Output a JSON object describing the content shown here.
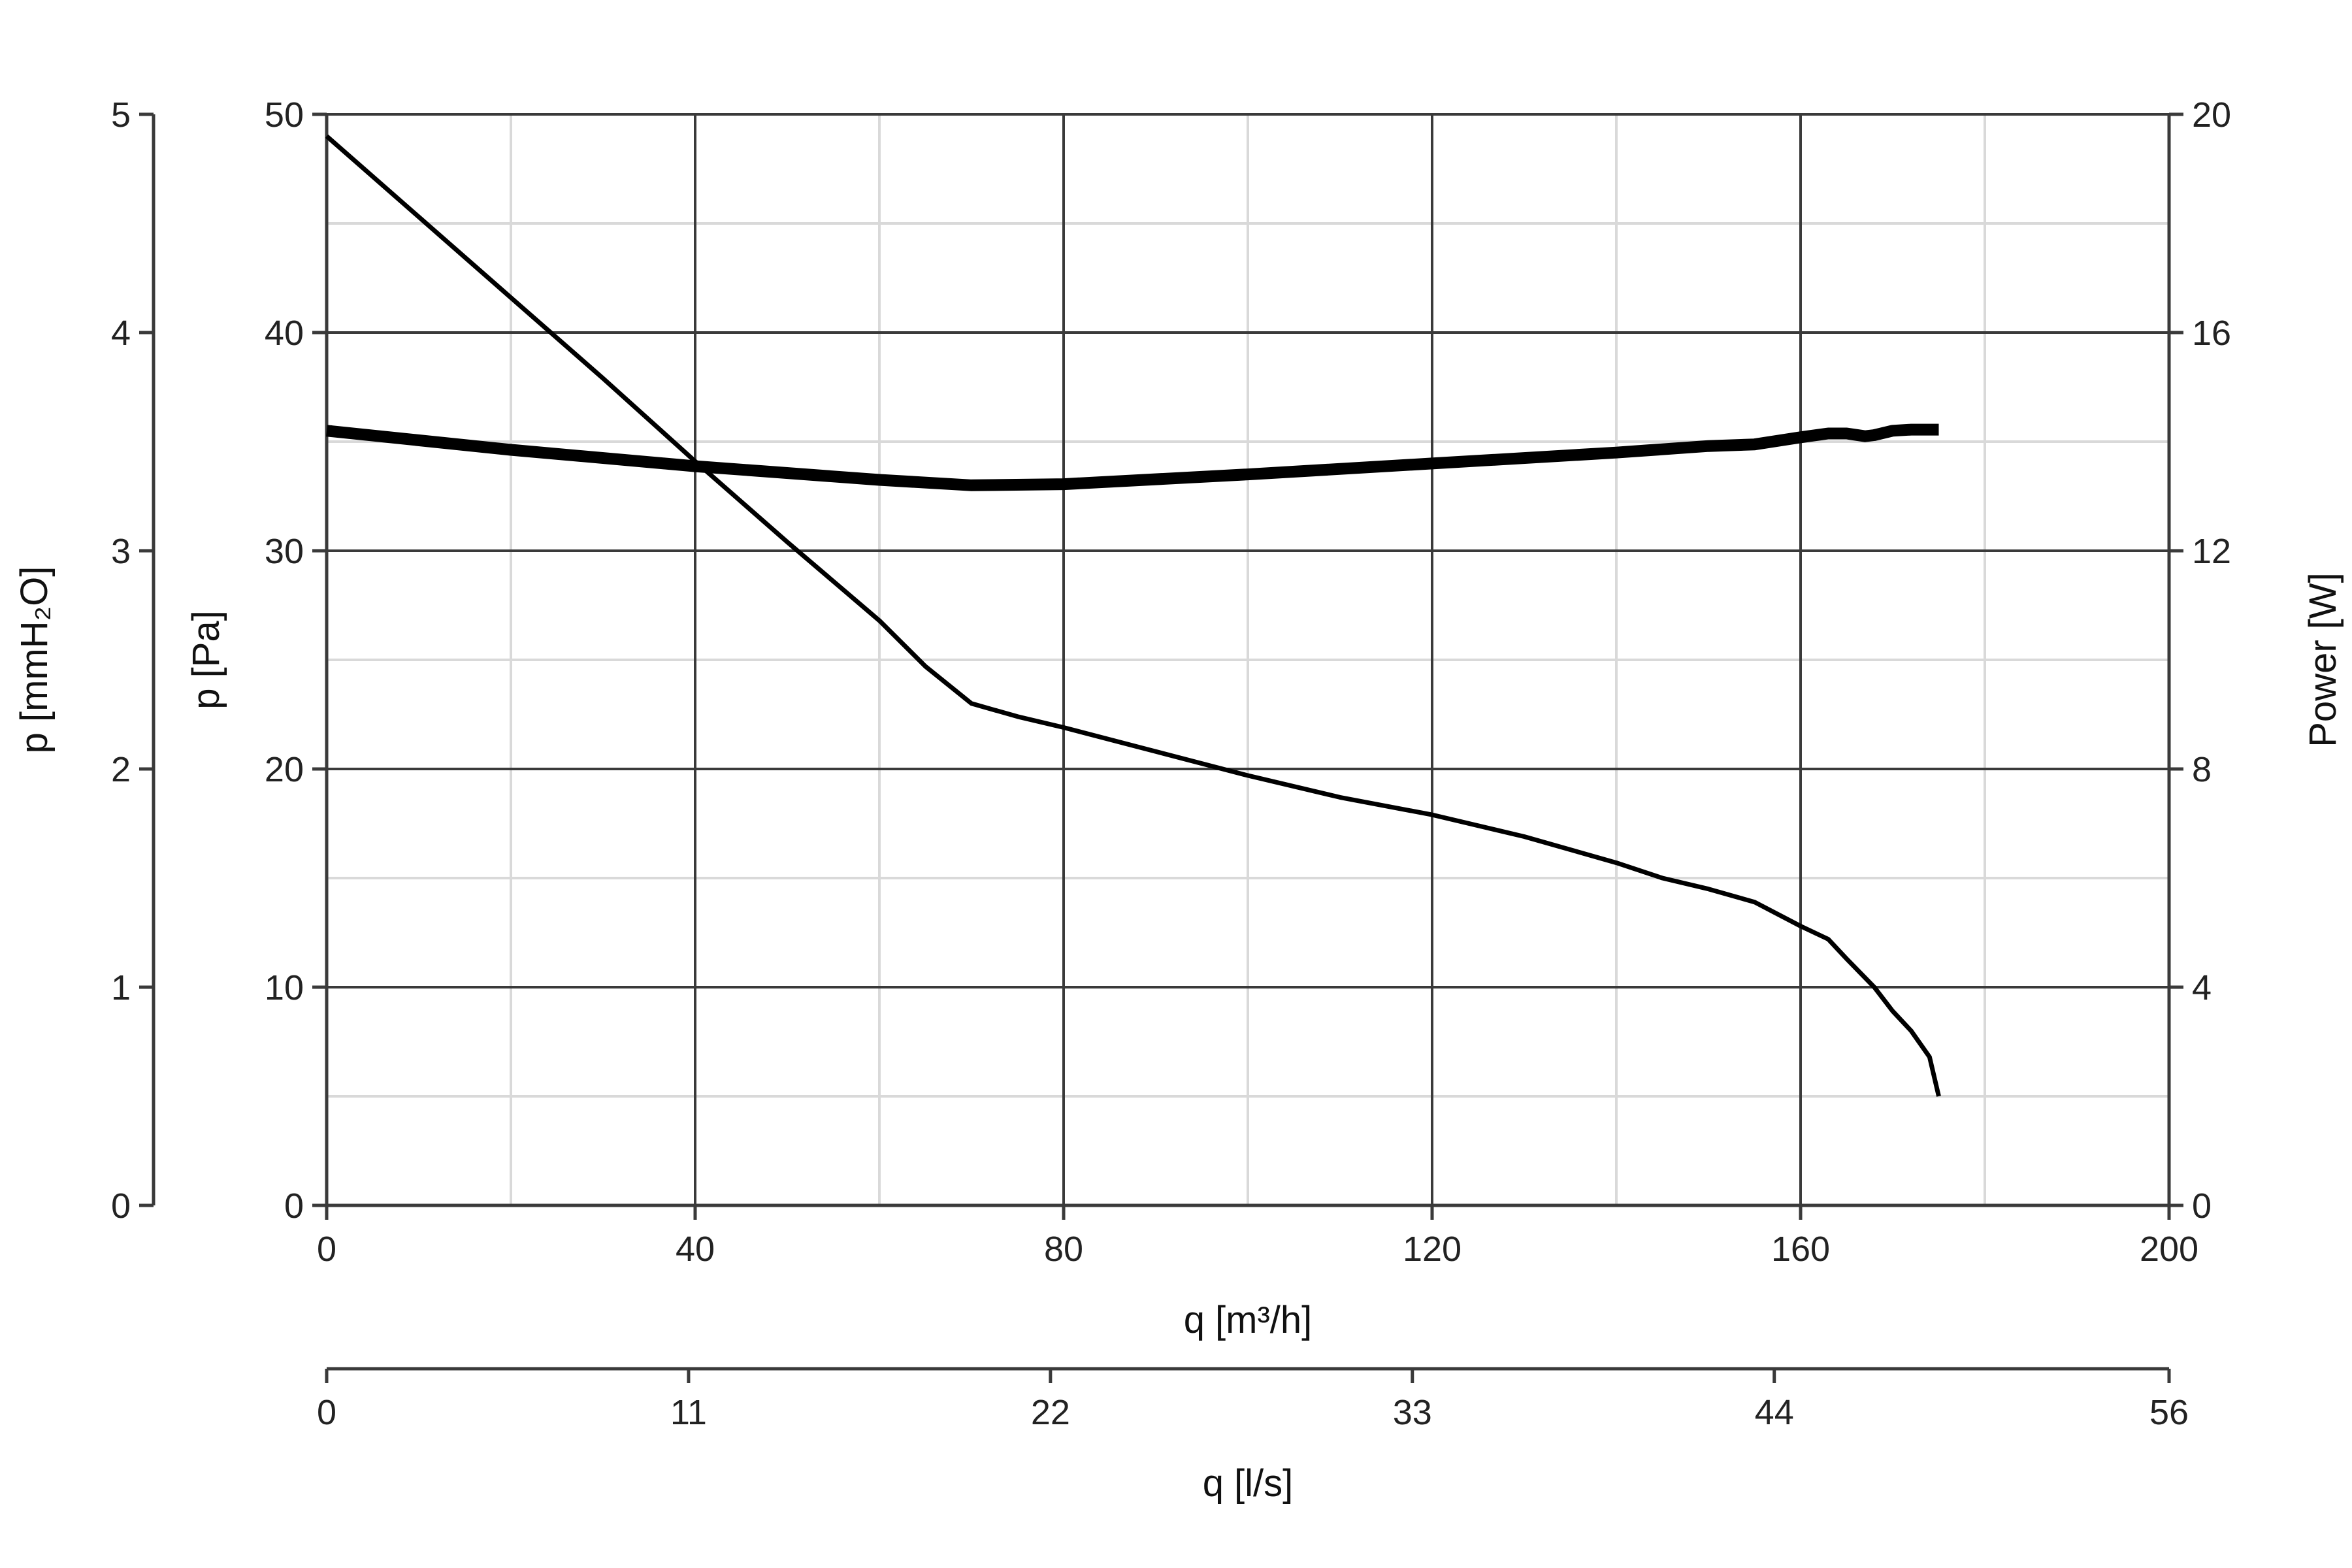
{
  "chart_data": {
    "type": "line",
    "x_axis": {
      "label": "q [m³/h]",
      "range": [
        0,
        200
      ],
      "ticks": [
        0,
        40,
        80,
        120,
        160,
        200
      ],
      "minor_ticks": [
        20,
        60,
        100,
        140,
        180
      ]
    },
    "x_axis_secondary": {
      "label": "q [l/s]",
      "range": [
        0,
        56
      ],
      "ticks": [
        0,
        11,
        22,
        33,
        44,
        56
      ]
    },
    "y_axis": {
      "label": "p [Pa]",
      "range": [
        0,
        50
      ],
      "ticks": [
        0,
        10,
        20,
        30,
        40,
        50
      ],
      "minor_ticks": [
        5,
        15,
        25,
        35,
        45
      ]
    },
    "y_axis_outer": {
      "label": "p [mmH₂O]",
      "range": [
        0,
        5
      ],
      "ticks": [
        0,
        1,
        2,
        3,
        4,
        5
      ]
    },
    "y_axis_right": {
      "label": "Power [W]",
      "range": [
        0,
        20
      ],
      "ticks": [
        0,
        4,
        8,
        12,
        16,
        20
      ]
    },
    "grid": true,
    "colors": {
      "curve": "#000000",
      "grid_major": "#3a3a3a",
      "grid_minor": "#d9d9d9",
      "axis": "#3a3a3a"
    },
    "series": [
      {
        "axis": "left",
        "x": [
          0,
          10,
          20,
          30,
          40,
          50,
          60,
          65,
          70,
          75,
          80,
          90,
          100,
          110,
          120,
          130,
          140,
          145,
          150,
          155,
          160,
          163,
          165,
          168,
          170,
          172,
          174,
          175
        ],
        "y": [
          49,
          45.3,
          41.6,
          37.9,
          34.1,
          30.4,
          26.8,
          24.7,
          23.0,
          22.4,
          21.9,
          20.8,
          19.7,
          18.7,
          17.9,
          16.9,
          15.7,
          15.0,
          14.5,
          13.9,
          12.8,
          12.2,
          11.3,
          10.0,
          8.9,
          8.0,
          6.8,
          5.0
        ]
      },
      {
        "axis": "right",
        "x": [
          0,
          20,
          40,
          60,
          70,
          80,
          100,
          120,
          140,
          150,
          155,
          160,
          163,
          165,
          167,
          168,
          170,
          172,
          175
        ],
        "y": [
          14.2,
          13.85,
          13.55,
          13.3,
          13.2,
          13.22,
          13.4,
          13.6,
          13.8,
          13.92,
          13.95,
          14.08,
          14.15,
          14.15,
          14.1,
          14.12,
          14.2,
          14.22,
          14.22
        ]
      }
    ]
  }
}
